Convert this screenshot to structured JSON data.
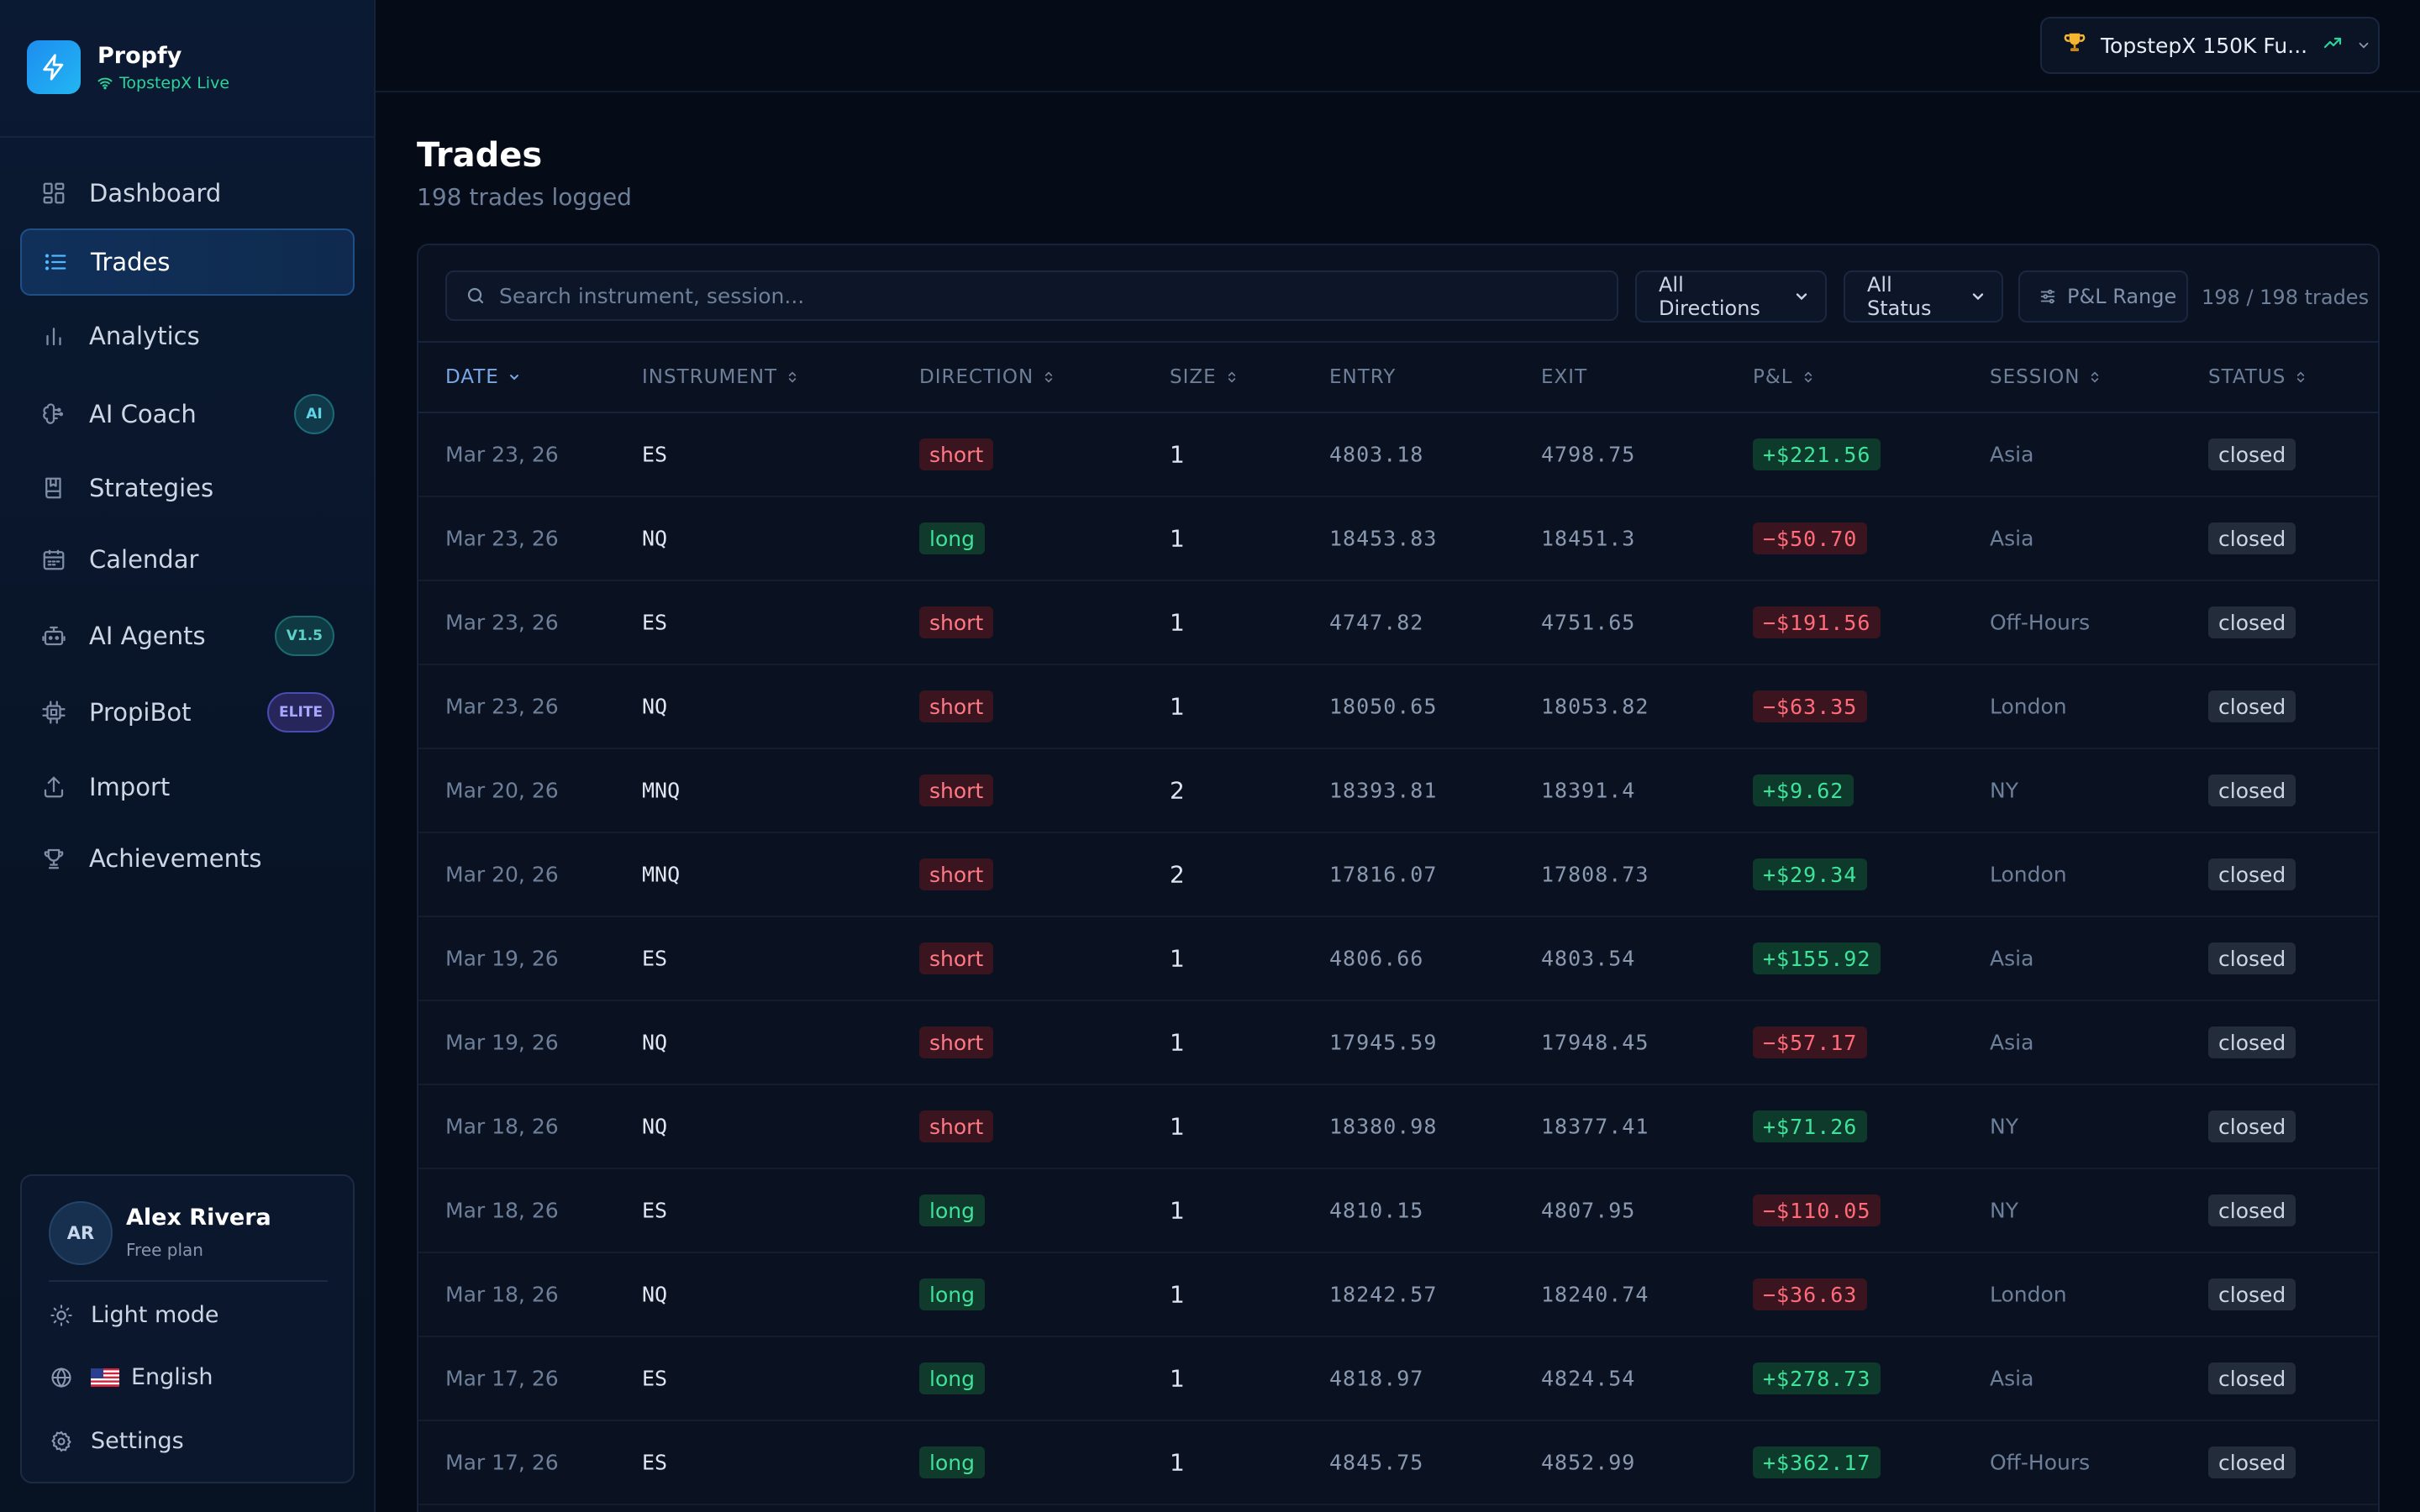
{
  "brand": {
    "name": "Propfy",
    "connection": "TopstepX Live"
  },
  "nav": [
    {
      "label": "Dashboard",
      "icon": "dashboard-icon",
      "active": false,
      "badge": ""
    },
    {
      "label": "Trades",
      "icon": "list-icon",
      "active": true,
      "badge": ""
    },
    {
      "label": "Analytics",
      "icon": "bar-chart-icon",
      "active": false,
      "badge": ""
    },
    {
      "label": "AI Coach",
      "icon": "brain-icon",
      "active": false,
      "badge": "AI"
    },
    {
      "label": "Strategies",
      "icon": "book-icon",
      "active": false,
      "badge": ""
    },
    {
      "label": "Calendar",
      "icon": "calendar-icon",
      "active": false,
      "badge": ""
    },
    {
      "label": "AI Agents",
      "icon": "bot-icon",
      "active": false,
      "badge": "V1.5"
    },
    {
      "label": "PropiBot",
      "icon": "cpu-icon",
      "active": false,
      "badge": "ELITE"
    },
    {
      "label": "Import",
      "icon": "upload-icon",
      "active": false,
      "badge": ""
    },
    {
      "label": "Achievements",
      "icon": "trophy-icon",
      "active": false,
      "badge": ""
    }
  ],
  "user": {
    "initials": "AR",
    "name": "Alex Rivera",
    "plan": "Free plan",
    "theme_label": "Light mode",
    "language_label": "English",
    "settings_label": "Settings"
  },
  "account": {
    "label": "TopstepX 150K Fu..."
  },
  "page": {
    "title": "Trades",
    "subtitle": "198 trades logged"
  },
  "filters": {
    "search_placeholder": "Search instrument, session...",
    "direction": "All Directions",
    "status": "All Status",
    "pnl_range": "P&L Range",
    "count": "198 / 198 trades"
  },
  "columns": {
    "date": "DATE",
    "instrument": "INSTRUMENT",
    "direction": "DIRECTION",
    "size": "SIZE",
    "entry": "ENTRY",
    "exit": "EXIT",
    "pnl": "P&L",
    "session": "SESSION",
    "status": "STATUS"
  },
  "trades": [
    {
      "date": "Mar 23, 26",
      "instrument": "ES",
      "direction": "short",
      "size": "1",
      "entry": "4803.18",
      "exit": "4798.75",
      "pnl": "+$221.56",
      "session": "Asia",
      "status": "closed"
    },
    {
      "date": "Mar 23, 26",
      "instrument": "NQ",
      "direction": "long",
      "size": "1",
      "entry": "18453.83",
      "exit": "18451.3",
      "pnl": "−$50.70",
      "session": "Asia",
      "status": "closed"
    },
    {
      "date": "Mar 23, 26",
      "instrument": "ES",
      "direction": "short",
      "size": "1",
      "entry": "4747.82",
      "exit": "4751.65",
      "pnl": "−$191.56",
      "session": "Off-Hours",
      "status": "closed"
    },
    {
      "date": "Mar 23, 26",
      "instrument": "NQ",
      "direction": "short",
      "size": "1",
      "entry": "18050.65",
      "exit": "18053.82",
      "pnl": "−$63.35",
      "session": "London",
      "status": "closed"
    },
    {
      "date": "Mar 20, 26",
      "instrument": "MNQ",
      "direction": "short",
      "size": "2",
      "entry": "18393.81",
      "exit": "18391.4",
      "pnl": "+$9.62",
      "session": "NY",
      "status": "closed"
    },
    {
      "date": "Mar 20, 26",
      "instrument": "MNQ",
      "direction": "short",
      "size": "2",
      "entry": "17816.07",
      "exit": "17808.73",
      "pnl": "+$29.34",
      "session": "London",
      "status": "closed"
    },
    {
      "date": "Mar 19, 26",
      "instrument": "ES",
      "direction": "short",
      "size": "1",
      "entry": "4806.66",
      "exit": "4803.54",
      "pnl": "+$155.92",
      "session": "Asia",
      "status": "closed"
    },
    {
      "date": "Mar 19, 26",
      "instrument": "NQ",
      "direction": "short",
      "size": "1",
      "entry": "17945.59",
      "exit": "17948.45",
      "pnl": "−$57.17",
      "session": "Asia",
      "status": "closed"
    },
    {
      "date": "Mar 18, 26",
      "instrument": "NQ",
      "direction": "short",
      "size": "1",
      "entry": "18380.98",
      "exit": "18377.41",
      "pnl": "+$71.26",
      "session": "NY",
      "status": "closed"
    },
    {
      "date": "Mar 18, 26",
      "instrument": "ES",
      "direction": "long",
      "size": "1",
      "entry": "4810.15",
      "exit": "4807.95",
      "pnl": "−$110.05",
      "session": "NY",
      "status": "closed"
    },
    {
      "date": "Mar 18, 26",
      "instrument": "NQ",
      "direction": "long",
      "size": "1",
      "entry": "18242.57",
      "exit": "18240.74",
      "pnl": "−$36.63",
      "session": "London",
      "status": "closed"
    },
    {
      "date": "Mar 17, 26",
      "instrument": "ES",
      "direction": "long",
      "size": "1",
      "entry": "4818.97",
      "exit": "4824.54",
      "pnl": "+$278.73",
      "session": "Asia",
      "status": "closed"
    },
    {
      "date": "Mar 17, 26",
      "instrument": "ES",
      "direction": "long",
      "size": "1",
      "entry": "4845.75",
      "exit": "4852.99",
      "pnl": "+$362.17",
      "session": "Off-Hours",
      "status": "closed"
    }
  ]
}
